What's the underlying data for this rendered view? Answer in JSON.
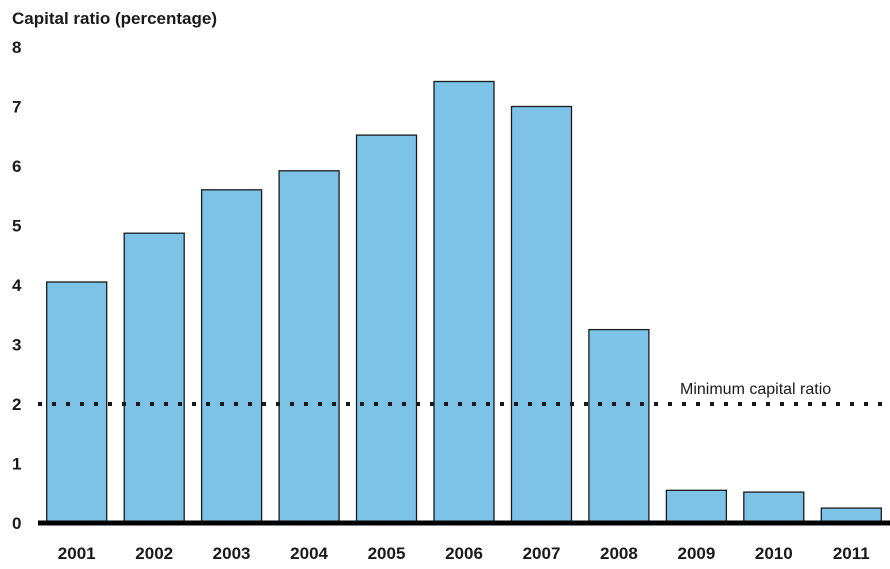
{
  "chart_data": {
    "type": "bar",
    "ylabel": "Capital ratio (percentage)",
    "ylim": [
      0,
      8
    ],
    "yticks": [
      0,
      1,
      2,
      3,
      4,
      5,
      6,
      7,
      8
    ],
    "categories": [
      "2001",
      "2002",
      "2003",
      "2004",
      "2005",
      "2006",
      "2007",
      "2008",
      "2009",
      "2010",
      "2011"
    ],
    "values": [
      4.05,
      4.87,
      5.6,
      5.92,
      6.52,
      7.42,
      7.0,
      3.25,
      0.55,
      0.52,
      0.25
    ],
    "reference_line": {
      "value": 2,
      "label": "Minimum capital ratio",
      "style": "dotted"
    },
    "grid": false,
    "legend": "none",
    "colors": {
      "bar_fill": "#7dc3e8",
      "bar_stroke": "#1a1a1a",
      "axis": "#000000",
      "reference": "#1a1a1a"
    }
  }
}
